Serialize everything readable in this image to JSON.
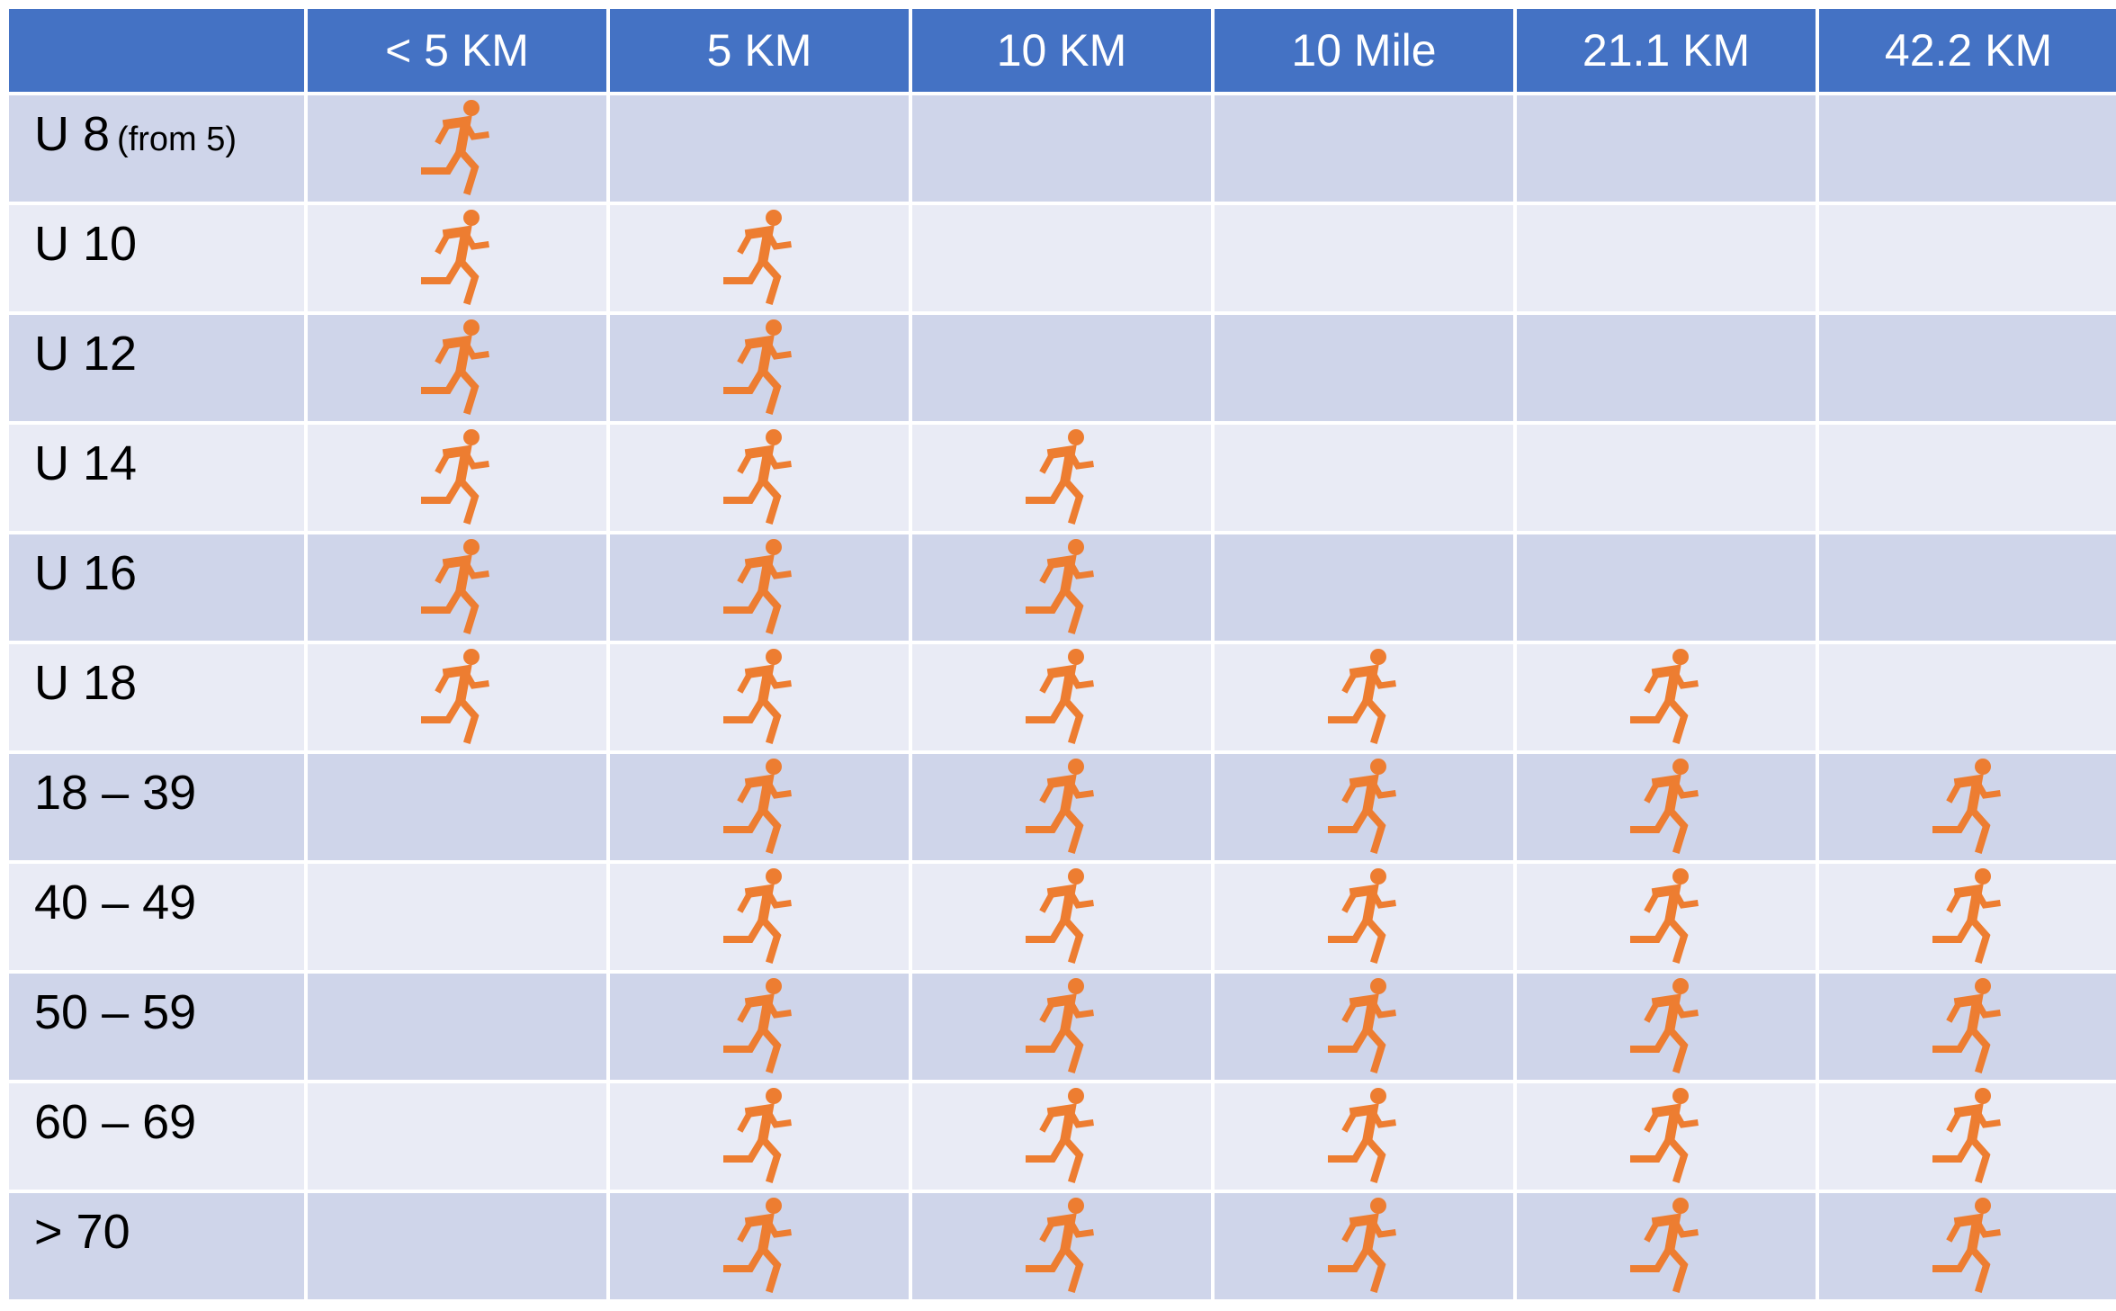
{
  "colors": {
    "header_bg": "#4472C4",
    "row_odd_bg": "#CFD5EA",
    "row_even_bg": "#E9EBF5",
    "runner": "#ED7D31"
  },
  "icon": "running-person-icon",
  "columns": [
    "",
    "< 5 KM",
    "5 KM",
    "10 KM",
    "10 Mile",
    "21.1 KM",
    "42.2 KM"
  ],
  "rows": [
    {
      "label": "U 8",
      "note": "(from 5)",
      "marks": [
        true,
        false,
        false,
        false,
        false,
        false
      ]
    },
    {
      "label": "U 10",
      "note": "",
      "marks": [
        true,
        true,
        false,
        false,
        false,
        false
      ]
    },
    {
      "label": "U 12",
      "note": "",
      "marks": [
        true,
        true,
        false,
        false,
        false,
        false
      ]
    },
    {
      "label": "U 14",
      "note": "",
      "marks": [
        true,
        true,
        true,
        false,
        false,
        false
      ]
    },
    {
      "label": "U 16",
      "note": "",
      "marks": [
        true,
        true,
        true,
        false,
        false,
        false
      ]
    },
    {
      "label": "U 18",
      "note": "",
      "marks": [
        true,
        true,
        true,
        true,
        true,
        false
      ]
    },
    {
      "label": "18 – 39",
      "note": "",
      "marks": [
        false,
        true,
        true,
        true,
        true,
        true
      ]
    },
    {
      "label": "40 – 49",
      "note": "",
      "marks": [
        false,
        true,
        true,
        true,
        true,
        true
      ]
    },
    {
      "label": "50 – 59",
      "note": "",
      "marks": [
        false,
        true,
        true,
        true,
        true,
        true
      ]
    },
    {
      "label": "60 – 69",
      "note": "",
      "marks": [
        false,
        true,
        true,
        true,
        true,
        true
      ]
    },
    {
      "label": "> 70",
      "note": "",
      "marks": [
        false,
        true,
        true,
        true,
        true,
        true
      ]
    }
  ]
}
